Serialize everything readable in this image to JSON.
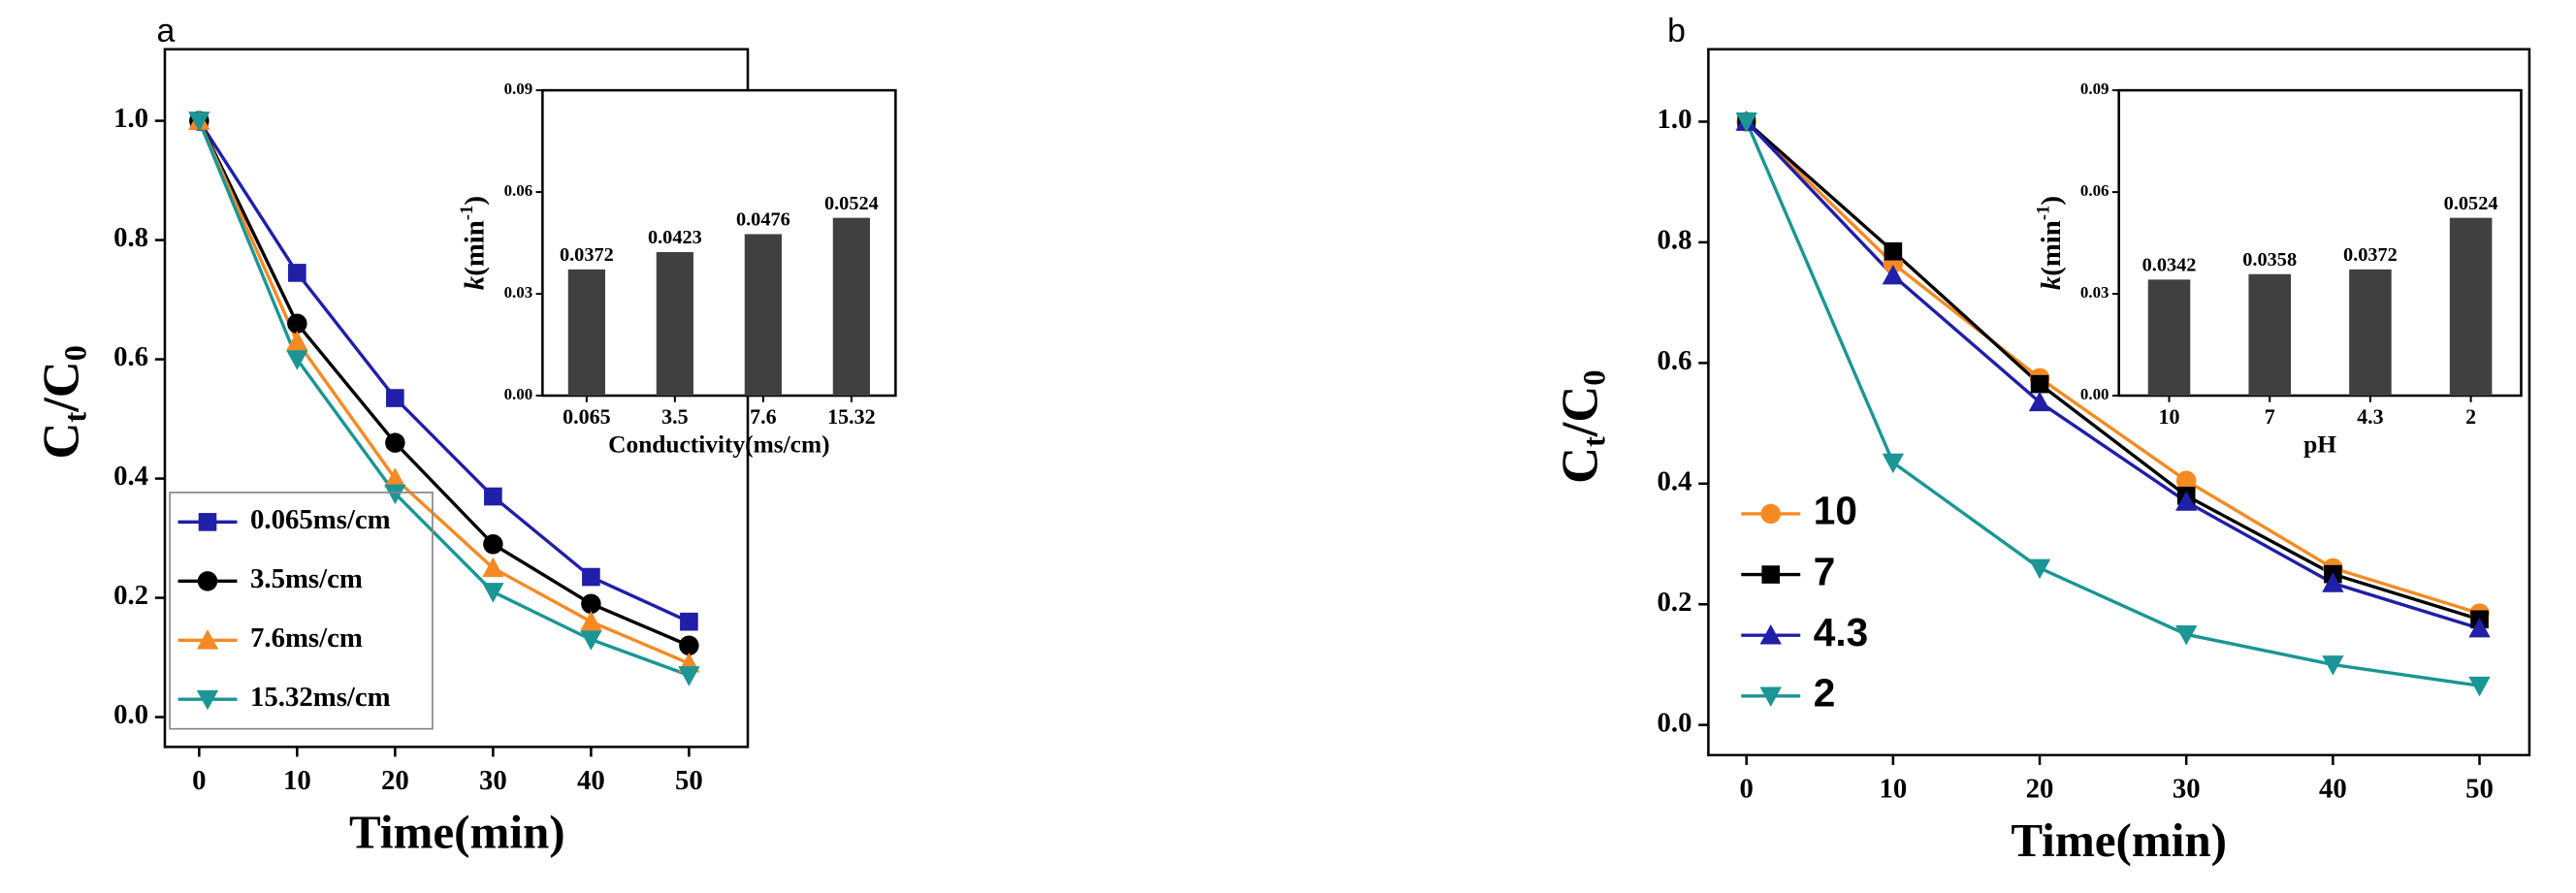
{
  "chart_data": [
    {
      "type": "line",
      "panel_label": "a",
      "xlabel": "Time(min)",
      "ylabel": [
        "C",
        "t",
        "/C",
        "0"
      ],
      "x": [
        0,
        10,
        20,
        30,
        40,
        50
      ],
      "xlim": [
        -3.5,
        56
      ],
      "xticks": [
        0,
        10,
        20,
        30,
        40,
        50
      ],
      "ylim": [
        -0.05,
        1.12
      ],
      "yticks": [
        {
          "value": 0,
          "label": "0.0"
        },
        0.2,
        0.4,
        0.6,
        0.8,
        {
          "value": 1,
          "label": "1.0"
        }
      ],
      "legend_frame": true,
      "series": [
        {
          "name": "0.065ms/cm",
          "color": "#1f1fa8",
          "marker": "square",
          "values": [
            1.0,
            0.745,
            0.535,
            0.37,
            0.235,
            0.16
          ]
        },
        {
          "name": "3.5ms/cm",
          "color": "#000000",
          "marker": "circle",
          "values": [
            1.0,
            0.66,
            0.46,
            0.29,
            0.19,
            0.12
          ]
        },
        {
          "name": "7.6ms/cm",
          "color": "#f58a24",
          "marker": "triangle-up",
          "values": [
            1.0,
            0.63,
            0.4,
            0.25,
            0.16,
            0.09
          ]
        },
        {
          "name": "15.32ms/cm",
          "color": "#1b9595",
          "marker": "triangle-down",
          "values": [
            1.0,
            0.6,
            0.375,
            0.21,
            0.13,
            0.07
          ]
        }
      ]
    },
    {
      "type": "bar",
      "xlabel": "Conductivity(ms/cm)",
      "ylabel": [
        "k",
        "(min",
        "-1",
        ")"
      ],
      "categories": [
        "0.065",
        "3.5",
        "7.6",
        "15.32"
      ],
      "values": [
        0.0372,
        0.0423,
        0.0476,
        0.0524
      ],
      "color": "#404040",
      "ylim": [
        0,
        0.09
      ],
      "yticks": [
        {
          "value": 0,
          "label": "0.00"
        },
        0.03,
        0.06,
        0.09
      ]
    },
    {
      "type": "line",
      "panel_label": "b",
      "xlabel": "Time(min)",
      "ylabel": [
        "C",
        "t",
        "/C",
        "0"
      ],
      "x": [
        0,
        10,
        20,
        30,
        40,
        50
      ],
      "xlim": [
        -2.6,
        53.4
      ],
      "xticks": [
        0,
        10,
        20,
        30,
        40,
        50
      ],
      "ylim": [
        -0.05,
        1.12
      ],
      "yticks": [
        {
          "value": 0,
          "label": "0.0"
        },
        0.2,
        0.4,
        0.6,
        0.8,
        {
          "value": 1,
          "label": "1.0"
        }
      ],
      "legend_frame": false,
      "series": [
        {
          "name": "10",
          "color": "#f58a24",
          "marker": "circle",
          "values": [
            1.0,
            0.765,
            0.575,
            0.405,
            0.26,
            0.185
          ]
        },
        {
          "name": "7",
          "color": "#000000",
          "marker": "square",
          "values": [
            1.0,
            0.785,
            0.565,
            0.38,
            0.25,
            0.175
          ]
        },
        {
          "name": "4.3",
          "color": "#1f1fa8",
          "marker": "triangle-up",
          "values": [
            1.0,
            0.745,
            0.535,
            0.37,
            0.235,
            0.16
          ]
        },
        {
          "name": "2",
          "color": "#1b9595",
          "marker": "triangle-down",
          "values": [
            1.0,
            0.435,
            0.26,
            0.15,
            0.1,
            0.065
          ]
        }
      ]
    },
    {
      "type": "bar",
      "xlabel": "pH",
      "ylabel": [
        "k",
        "(min",
        "-1",
        ")"
      ],
      "categories": [
        "10",
        "7",
        "4.3",
        "2"
      ],
      "values": [
        0.0342,
        0.0358,
        0.0372,
        0.0524
      ],
      "color": "#404040",
      "ylim": [
        0,
        0.09
      ],
      "yticks": [
        {
          "value": 0,
          "label": "0.00"
        },
        0.03,
        0.06,
        0.09
      ]
    }
  ]
}
